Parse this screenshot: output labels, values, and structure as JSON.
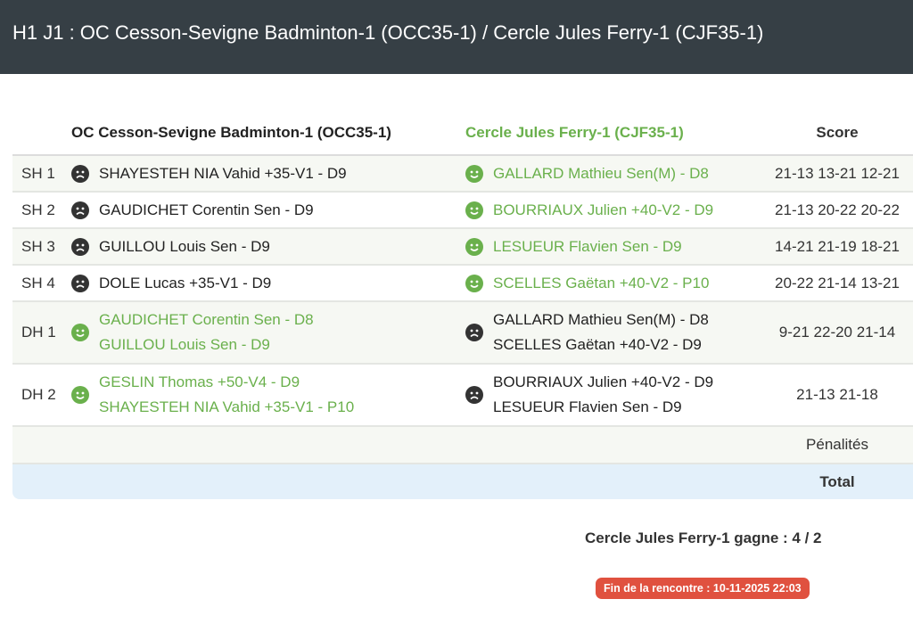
{
  "title": "H1 J1 : OC Cesson-Sevigne Badminton-1 (OCC35-1) / Cercle Jules Ferry-1 (CJF35-1)",
  "table": {
    "headers": {
      "team1": "OC Cesson-Sevigne Badminton-1 (OCC35-1)",
      "team2": "Cercle Jules Ferry-1 (CJF35-1)",
      "score": "Score"
    },
    "colors": {
      "winner": "#6ab04c",
      "loser": "#333333"
    },
    "rows": [
      {
        "label": "SH 1",
        "team1": [
          "SHAYESTEH NIA Vahid +35-V1 - D9"
        ],
        "team1_icon": "sad-face-icon",
        "team2": [
          "GALLARD Mathieu Sen(M) - D8"
        ],
        "team2_icon": "happy-face-icon",
        "winner": "team2",
        "score": "21-13 13-21 12-21"
      },
      {
        "label": "SH 2",
        "team1": [
          "GAUDICHET Corentin Sen - D9"
        ],
        "team1_icon": "sad-face-icon",
        "team2": [
          "BOURRIAUX Julien +40-V2 - D9"
        ],
        "team2_icon": "happy-face-icon",
        "winner": "team2",
        "score": "21-13 20-22 20-22"
      },
      {
        "label": "SH 3",
        "team1": [
          "GUILLOU Louis Sen - D9"
        ],
        "team1_icon": "sad-face-icon",
        "team2": [
          "LESUEUR Flavien Sen - D9"
        ],
        "team2_icon": "happy-face-icon",
        "winner": "team2",
        "score": "14-21 21-19 18-21"
      },
      {
        "label": "SH 4",
        "team1": [
          "DOLE Lucas +35-V1 - D9"
        ],
        "team1_icon": "sad-face-icon",
        "team2": [
          "SCELLES Gaëtan +40-V2 - P10"
        ],
        "team2_icon": "happy-face-icon",
        "winner": "team2",
        "score": "20-22 21-14 13-21"
      },
      {
        "label": "DH 1",
        "team1": [
          "GAUDICHET Corentin Sen - D8",
          "GUILLOU Louis Sen - D9"
        ],
        "team1_icon": "happy-face-icon",
        "team2": [
          "GALLARD Mathieu Sen(M) - D8",
          "SCELLES Gaëtan +40-V2 - D9"
        ],
        "team2_icon": "sad-face-icon",
        "winner": "team1",
        "score": "9-21 22-20 21-14"
      },
      {
        "label": "DH 2",
        "team1": [
          "GESLIN Thomas +50-V4 - D9",
          "SHAYESTEH NIA Vahid +35-V1 - P10"
        ],
        "team1_icon": "happy-face-icon",
        "team2": [
          "BOURRIAUX Julien +40-V2 - D9",
          "LESUEUR Flavien Sen - D9"
        ],
        "team2_icon": "sad-face-icon",
        "winner": "team1",
        "score": "21-13 21-18"
      }
    ],
    "penalties_label": "Pénalités",
    "total_label": "Total"
  },
  "result": "Cercle Jules Ferry-1 gagne : 4 / 2",
  "end_badge": "Fin de la rencontre : 10-11-2025 22:03"
}
